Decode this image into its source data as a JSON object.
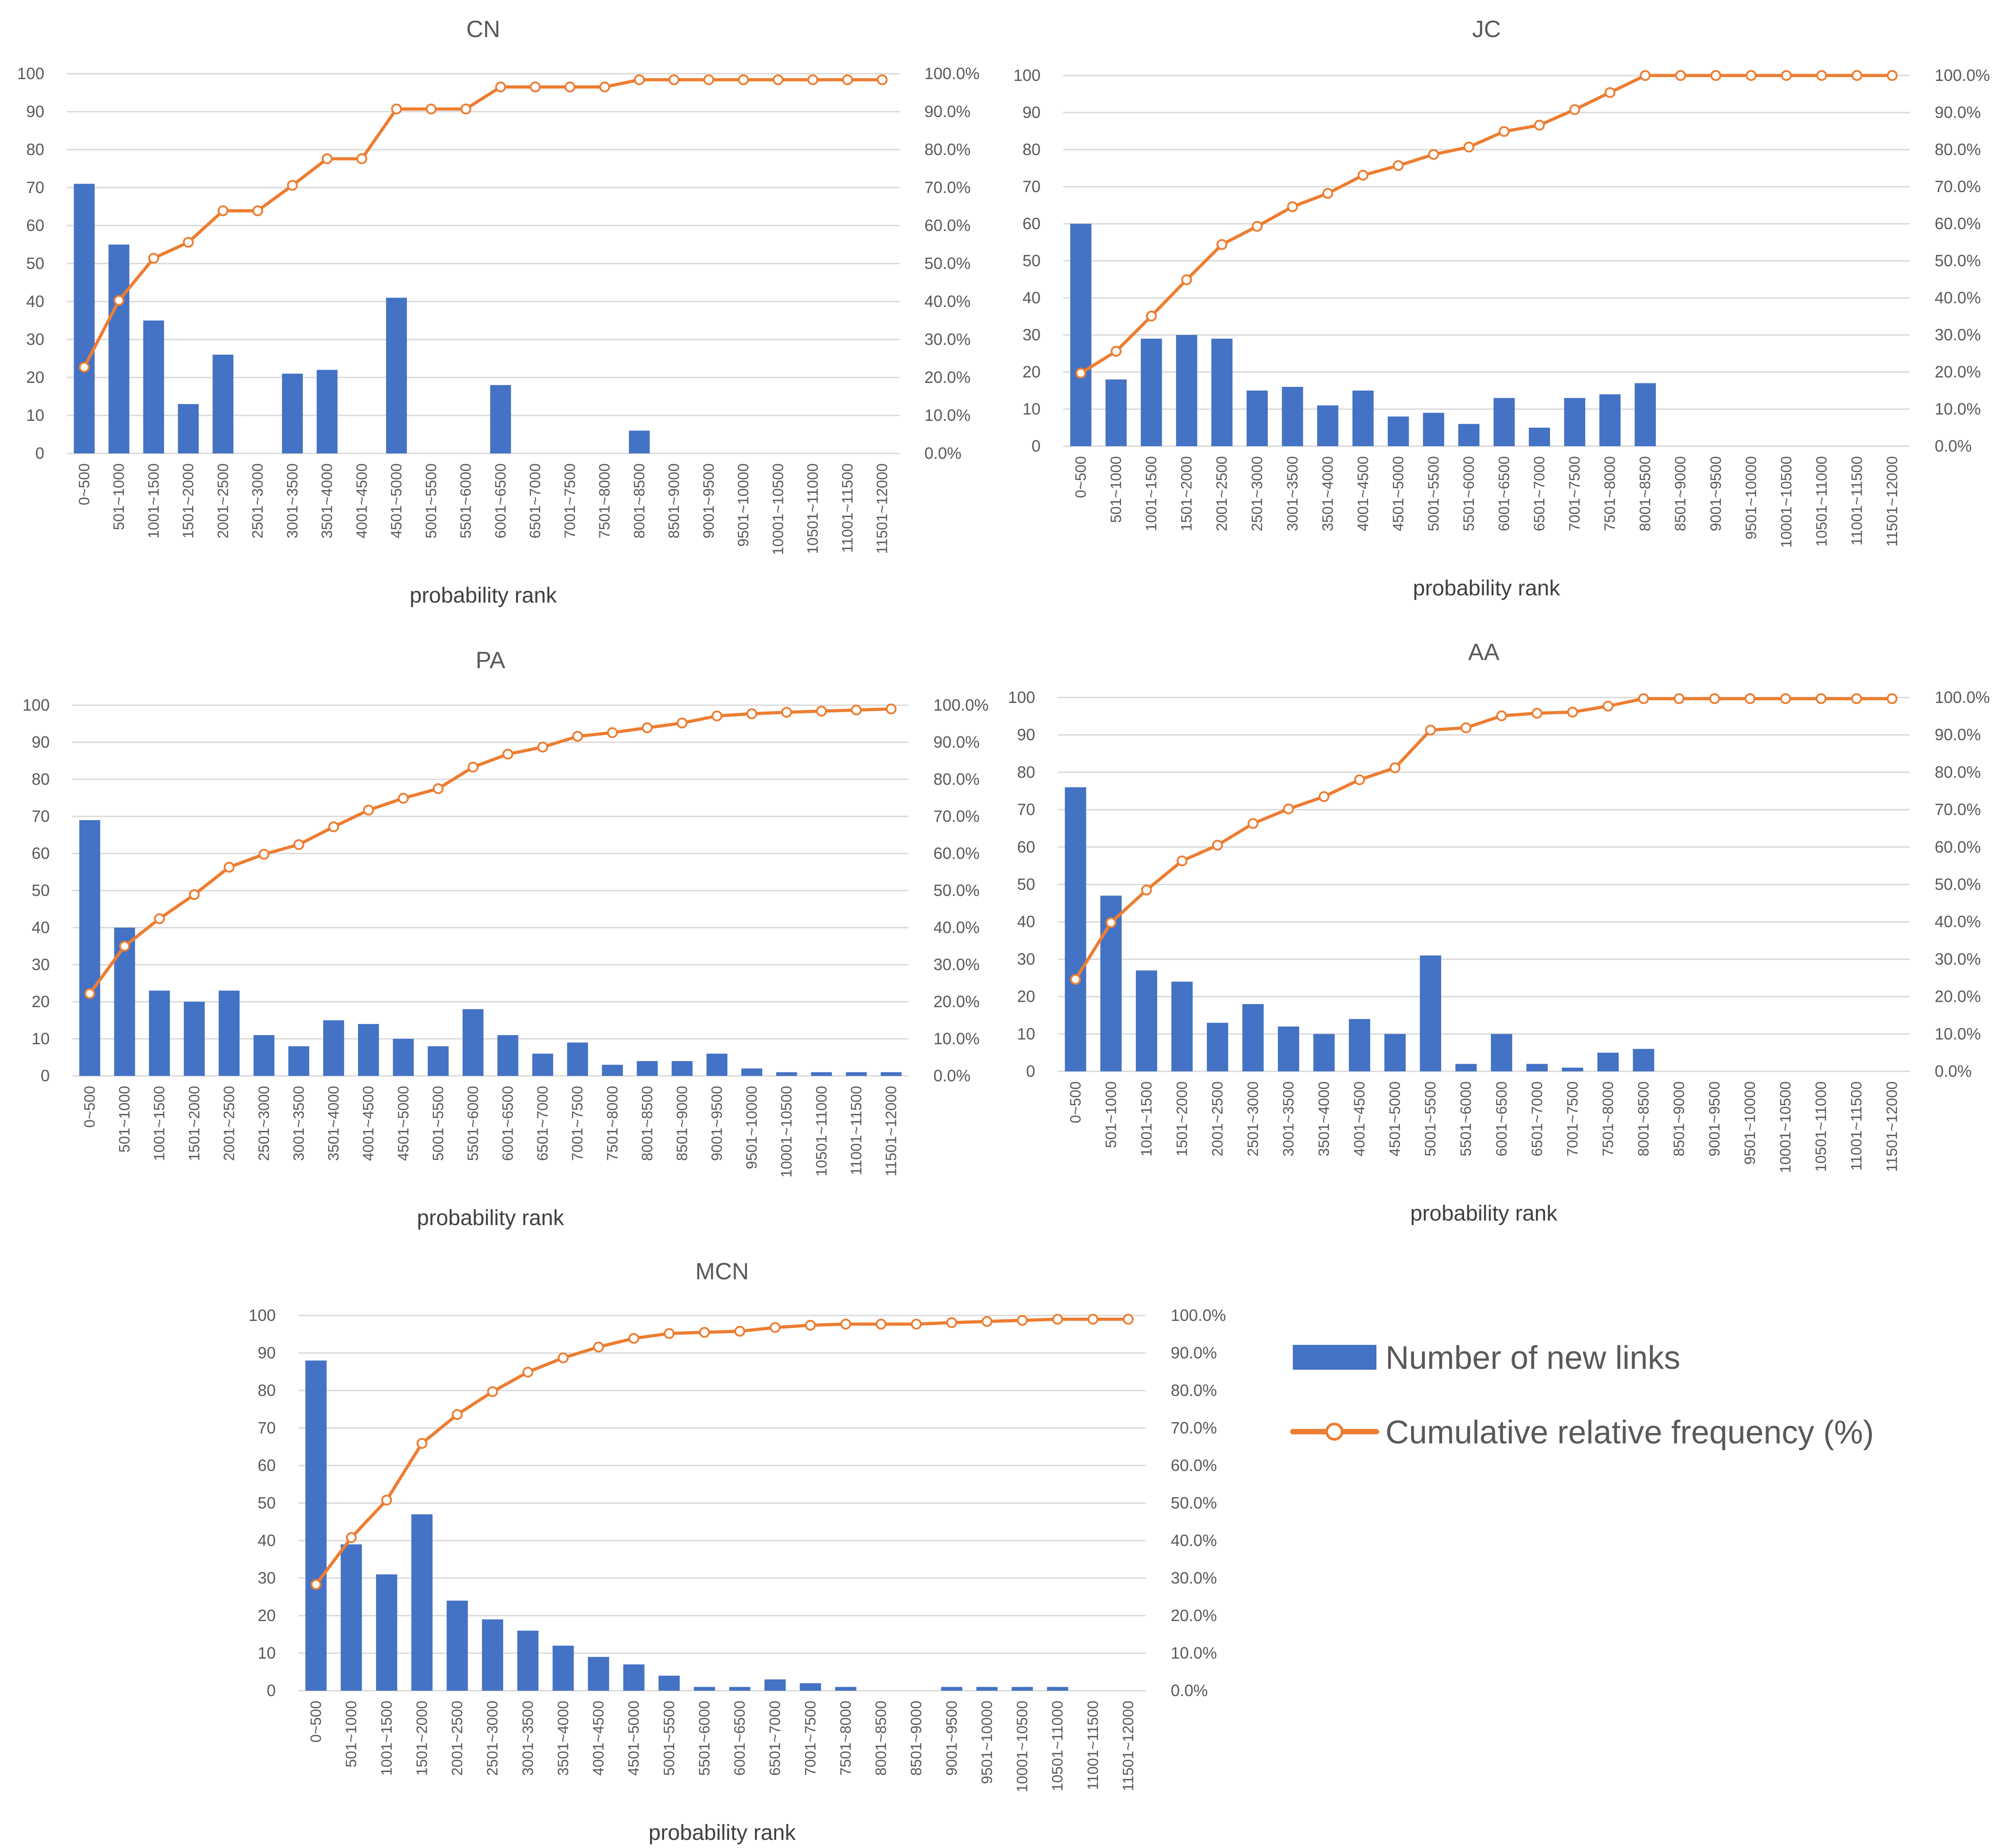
{
  "categories": [
    "0~500",
    "501~1000",
    "1001~1500",
    "1501~2000",
    "2001~2500",
    "2501~3000",
    "3001~3500",
    "3501~4000",
    "4001~4500",
    "4501~5000",
    "5001~5500",
    "5501~6000",
    "6001~6500",
    "6501~7000",
    "7001~7500",
    "7501~8000",
    "8001~8500",
    "8501~9000",
    "9001~9500",
    "9501~10000",
    "10001~10500",
    "10501~11000",
    "11001~11500",
    "11501~12000"
  ],
  "y_ticks": [
    "0",
    "10",
    "20",
    "30",
    "40",
    "50",
    "60",
    "70",
    "80",
    "90",
    "100"
  ],
  "y2_ticks": [
    "0.0%",
    "10.0%",
    "20.0%",
    "30.0%",
    "40.0%",
    "50.0%",
    "60.0%",
    "70.0%",
    "80.0%",
    "90.0%",
    "100.0%"
  ],
  "colors": {
    "bar": "#4472c4",
    "line": "#ed7d31",
    "grid": "#d9d9d9"
  },
  "legend": {
    "bar_label": "Number of new links",
    "line_label": "Cumulative relative frequency (%)"
  },
  "chart_data": [
    {
      "type": "bar+line",
      "title": "CN",
      "xlabel": "probability rank",
      "ylabel": "",
      "ylim": [
        0,
        100
      ],
      "y2lim": [
        0,
        100
      ],
      "series": [
        {
          "name": "Number of new links",
          "values": [
            71,
            55,
            35,
            13,
            26,
            0,
            21,
            22,
            0,
            41,
            0,
            0,
            18,
            0,
            0,
            0,
            6,
            0,
            0,
            0,
            0,
            0,
            0,
            0
          ]
        },
        {
          "name": "Cumulative relative frequency (%)",
          "values": [
            22.7,
            40.3,
            51.4,
            55.6,
            63.9,
            63.9,
            70.6,
            77.6,
            77.6,
            90.7,
            90.7,
            90.7,
            96.5,
            96.5,
            96.5,
            96.5,
            98.4,
            98.4,
            98.4,
            98.4,
            98.4,
            98.4,
            98.4,
            98.4
          ]
        }
      ]
    },
    {
      "type": "bar+line",
      "title": "JC",
      "xlabel": "probability rank",
      "ylabel": "",
      "ylim": [
        0,
        100
      ],
      "y2lim": [
        0,
        100
      ],
      "series": [
        {
          "name": "Number of new links",
          "values": [
            60,
            18,
            29,
            30,
            29,
            15,
            16,
            11,
            15,
            8,
            9,
            6,
            13,
            5,
            13,
            14,
            17,
            0,
            0,
            0,
            0,
            0,
            0,
            0
          ]
        },
        {
          "name": "Cumulative relative frequency (%)",
          "values": [
            19.7,
            25.6,
            35.1,
            44.9,
            54.4,
            59.3,
            64.6,
            68.2,
            73.1,
            75.7,
            78.7,
            80.7,
            84.9,
            86.6,
            90.8,
            95.4,
            100,
            100,
            100,
            100,
            100,
            100,
            100,
            100
          ]
        }
      ]
    },
    {
      "type": "bar+line",
      "title": "PA",
      "xlabel": "probability rank",
      "ylabel": "",
      "ylim": [
        0,
        100
      ],
      "y2lim": [
        0,
        100
      ],
      "series": [
        {
          "name": "Number of new links",
          "values": [
            69,
            40,
            23,
            20,
            23,
            11,
            8,
            15,
            14,
            10,
            8,
            18,
            11,
            6,
            9,
            3,
            4,
            4,
            6,
            2,
            1,
            1,
            1,
            1
          ]
        },
        {
          "name": "Cumulative relative frequency (%)",
          "values": [
            22.2,
            35.0,
            42.4,
            48.9,
            56.3,
            59.8,
            62.4,
            67.2,
            71.7,
            74.9,
            77.5,
            83.3,
            86.8,
            88.7,
            91.6,
            92.6,
            93.9,
            95.2,
            97.1,
            97.7,
            98.1,
            98.4,
            98.7,
            99.0
          ]
        }
      ]
    },
    {
      "type": "bar+line",
      "title": "AA",
      "xlabel": "probability rank",
      "ylabel": "",
      "ylim": [
        0,
        100
      ],
      "y2lim": [
        0,
        100
      ],
      "series": [
        {
          "name": "Number of new links",
          "values": [
            76,
            47,
            27,
            24,
            13,
            18,
            12,
            10,
            14,
            10,
            31,
            2,
            10,
            2,
            1,
            5,
            6,
            0,
            0,
            0,
            0,
            0,
            0,
            0
          ]
        },
        {
          "name": "Cumulative relative frequency (%)",
          "values": [
            24.6,
            39.8,
            48.5,
            56.3,
            60.5,
            66.3,
            70.2,
            73.5,
            78.0,
            81.2,
            91.3,
            91.9,
            95.1,
            95.8,
            96.1,
            97.7,
            99.7,
            99.7,
            99.7,
            99.7,
            99.7,
            99.7,
            99.7,
            99.7
          ]
        }
      ]
    },
    {
      "type": "bar+line",
      "title": "MCN",
      "xlabel": "probability rank",
      "ylabel": "",
      "ylim": [
        0,
        100
      ],
      "y2lim": [
        0,
        100
      ],
      "series": [
        {
          "name": "Number of new links",
          "values": [
            88,
            39,
            31,
            47,
            24,
            19,
            16,
            12,
            9,
            7,
            4,
            1,
            1,
            3,
            2,
            1,
            0,
            0,
            1,
            1,
            1,
            1,
            0,
            0
          ]
        },
        {
          "name": "Cumulative relative frequency (%)",
          "values": [
            28.3,
            40.8,
            50.8,
            65.9,
            73.6,
            79.7,
            84.9,
            88.7,
            91.6,
            93.9,
            95.2,
            95.5,
            95.8,
            96.8,
            97.4,
            97.7,
            97.7,
            97.7,
            98.1,
            98.4,
            98.7,
            99.0,
            99.0,
            99.0
          ]
        }
      ]
    }
  ]
}
